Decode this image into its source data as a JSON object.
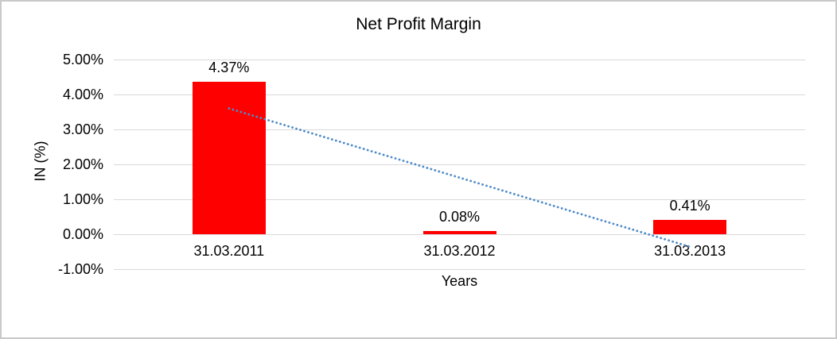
{
  "frame": {
    "background": "#FFFFFF",
    "border_color": "#C9C9C9"
  },
  "chart_data": {
    "type": "bar",
    "title": "Net Profit Margin",
    "xlabel": "Years",
    "ylabel": "IN (%)",
    "categories": [
      "31.03.2011",
      "31.03.2012",
      "31.03.2013"
    ],
    "values": [
      4.37,
      0.08,
      0.41
    ],
    "data_labels": [
      "4.37%",
      "0.08%",
      "0.41%"
    ],
    "ylim": [
      -1,
      5
    ],
    "ytick_values": [
      5,
      4,
      3,
      2,
      1,
      0,
      -1
    ],
    "ytick_labels": [
      "5.00%",
      "4.00%",
      "3.00%",
      "2.00%",
      "1.00%",
      "0.00%",
      "-1.00%"
    ],
    "grid": true,
    "legend": "none",
    "bar_color": "#FF0000",
    "gridline_color": "#D9D9D9",
    "text_color": "#000000",
    "trendline": {
      "type": "linear",
      "style": "dotted",
      "color": "#4E8BC8",
      "start_value": 3.6,
      "end_value": -0.36
    }
  }
}
